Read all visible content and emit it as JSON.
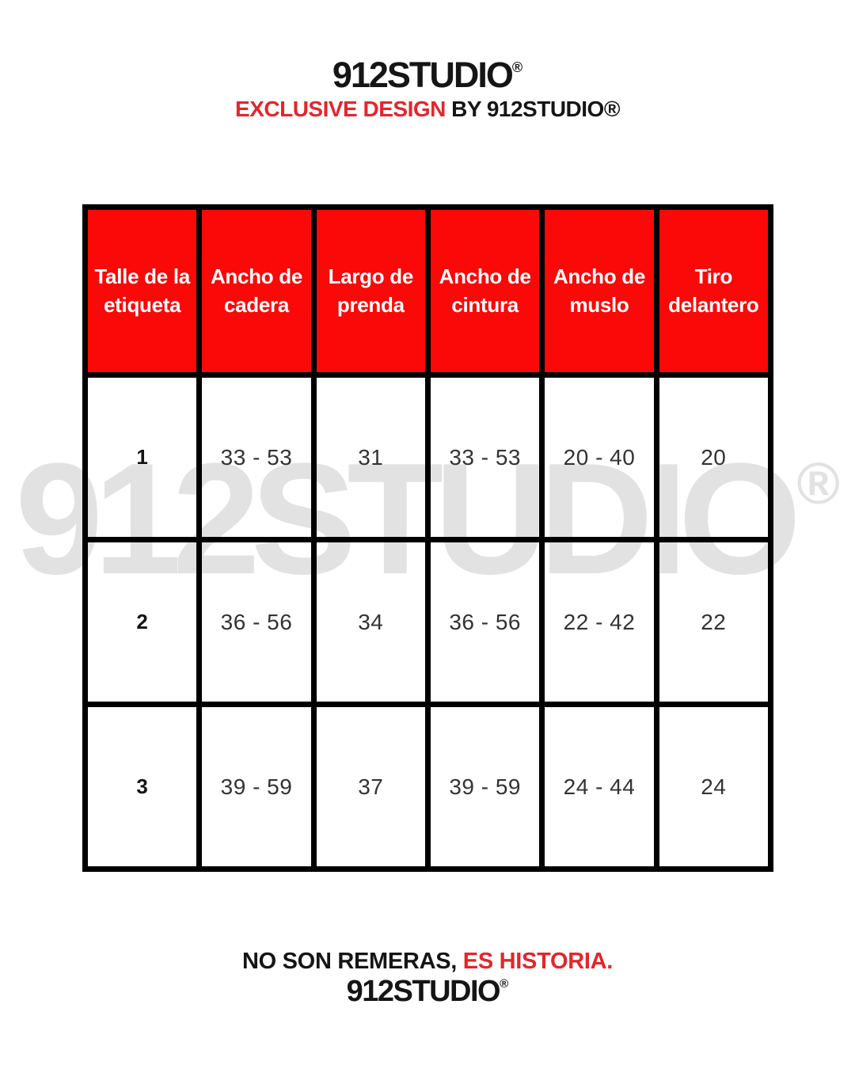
{
  "brand": {
    "logo_text": "912STUDIO",
    "registered_mark": "®",
    "tagline_accent": "EXCLUSIVE DESIGN",
    "tagline_rest": "BY 912STUDIO®"
  },
  "watermark": {
    "text": "912STUDIO",
    "mark": "®"
  },
  "size_table": {
    "columns": [
      "Talle de la etiqueta",
      "Ancho de cadera",
      "Largo de prenda",
      "Ancho de cintura",
      "Ancho de muslo",
      "Tiro delantero"
    ],
    "rows": [
      [
        "1",
        "33 - 53",
        "31",
        "33 - 53",
        "20 - 40",
        "20"
      ],
      [
        "2",
        "36 - 56",
        "34",
        "36 - 56",
        "22 - 42",
        "22"
      ],
      [
        "3",
        "39 - 59",
        "37",
        "39 - 59",
        "24 - 44",
        "24"
      ]
    ]
  },
  "chart_data": {
    "type": "table",
    "columns": [
      "Talle de la etiqueta",
      "Ancho de cadera",
      "Largo de prenda",
      "Ancho de cintura",
      "Ancho de muslo",
      "Tiro delantero"
    ],
    "rows": [
      [
        "1",
        "33 - 53",
        "31",
        "33 - 53",
        "20 - 40",
        "20"
      ],
      [
        "2",
        "36 - 56",
        "34",
        "36 - 56",
        "22 - 42",
        "22"
      ],
      [
        "3",
        "39 - 59",
        "37",
        "39 - 59",
        "24 - 44",
        "24"
      ]
    ]
  },
  "footer": {
    "slogan_black": "NO SON REMERAS,",
    "slogan_red": "ES HISTORIA.",
    "logo_text": "912STUDIO",
    "registered_mark": "®"
  },
  "colors": {
    "table_header_red": "#fb0808",
    "accent_red": "#e4262b",
    "text_dark": "#151515",
    "cell_text": "#333333",
    "watermark_gray": "#e2e2e2",
    "border_black": "#000000"
  }
}
